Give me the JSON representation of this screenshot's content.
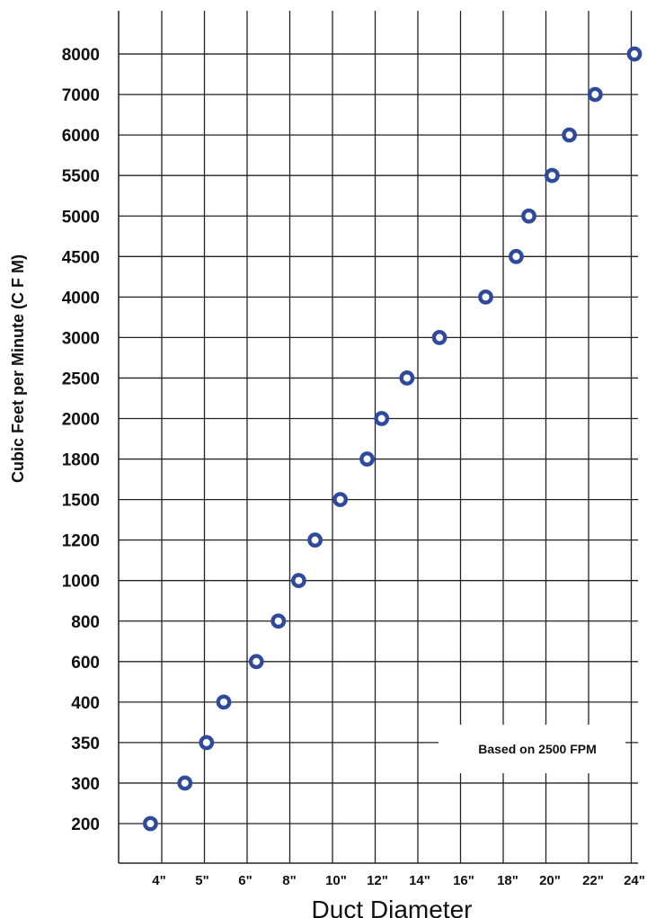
{
  "chart_data": {
    "type": "scatter",
    "title": "",
    "xlabel": "Duct Diameter",
    "ylabel": "Cubic Feet per Minute (C F M)",
    "annotation": "Based on 2500 FPM",
    "x_ticks": [
      "4\"",
      "5\"",
      "6\"",
      "8\"",
      "10\"",
      "12\"",
      "14\"",
      "16\"",
      "18\"",
      "20\"",
      "22\"",
      "24\""
    ],
    "y_ticks": [
      "200",
      "300",
      "350",
      "400",
      "600",
      "800",
      "1000",
      "1200",
      "1500",
      "1800",
      "2000",
      "2500",
      "3000",
      "4000",
      "4500",
      "5000",
      "5500",
      "6000",
      "7000",
      "8000"
    ],
    "grid": true,
    "marker_color": "#2f4a9c",
    "points": [
      {
        "x": 3.8,
        "y": 200
      },
      {
        "x": 4.6,
        "y": 300
      },
      {
        "x": 5.1,
        "y": 350
      },
      {
        "x": 5.5,
        "y": 400
      },
      {
        "x": 6.5,
        "y": 600
      },
      {
        "x": 7.5,
        "y": 800
      },
      {
        "x": 8.4,
        "y": 1000
      },
      {
        "x": 9.1,
        "y": 1200
      },
      {
        "x": 10.2,
        "y": 1500
      },
      {
        "x": 11.5,
        "y": 1800
      },
      {
        "x": 12.2,
        "y": 2000
      },
      {
        "x": 13.4,
        "y": 2500
      },
      {
        "x": 14.9,
        "y": 3000
      },
      {
        "x": 17,
        "y": 4000
      },
      {
        "x": 18.4,
        "y": 4500
      },
      {
        "x": 19,
        "y": 5000
      },
      {
        "x": 20.1,
        "y": 5500
      },
      {
        "x": 20.9,
        "y": 6000
      },
      {
        "x": 22.1,
        "y": 7000
      },
      {
        "x": 24,
        "y": 8000
      }
    ]
  }
}
